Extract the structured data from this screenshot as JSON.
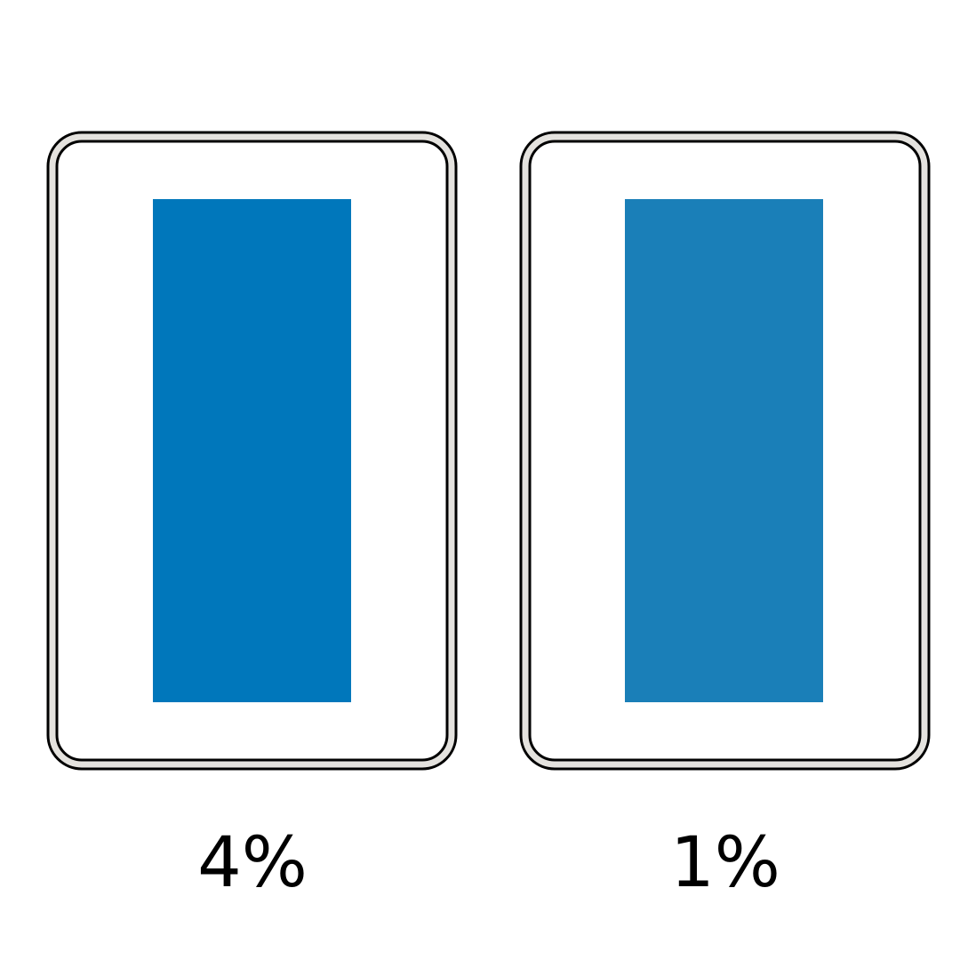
{
  "panels": [
    {
      "label": "4%",
      "fill_color": "#0077BB"
    },
    {
      "label": "1%",
      "fill_color": "#1A7FB8"
    }
  ],
  "colors": {
    "border": "#000000",
    "border_gap": "#E4E2DE",
    "background": "#FFFFFF"
  }
}
